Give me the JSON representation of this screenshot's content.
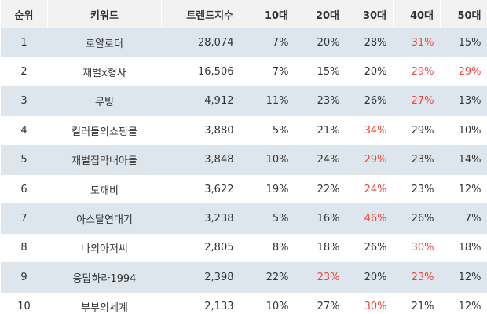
{
  "table": {
    "header": [
      "순위",
      "키워드",
      "트렌드지수",
      "10대",
      "20대",
      "30대",
      "40대",
      "50대"
    ],
    "rows": [
      [
        "1",
        "로얄로더",
        "28,074",
        "7%",
        "20%",
        "28%",
        "31%",
        "15%"
      ],
      [
        "2",
        "재벌x형사",
        "16,506",
        "7%",
        "15%",
        "20%",
        "29%",
        "29%"
      ],
      [
        "3",
        "무빙",
        "4,912",
        "11%",
        "23%",
        "26%",
        "27%",
        "13%"
      ],
      [
        "4",
        "킬러들의쇼핑몰",
        "3,880",
        "5%",
        "21%",
        "34%",
        "29%",
        "10%"
      ],
      [
        "5",
        "재벌집막내아들",
        "3,848",
        "10%",
        "24%",
        "29%",
        "23%",
        "14%"
      ],
      [
        "6",
        "도깨비",
        "3,622",
        "19%",
        "22%",
        "24%",
        "23%",
        "12%"
      ],
      [
        "7",
        "아스달연대기",
        "3,238",
        "5%",
        "16%",
        "46%",
        "26%",
        "7%"
      ],
      [
        "8",
        "나의아저씨",
        "2,805",
        "8%",
        "18%",
        "26%",
        "30%",
        "18%"
      ],
      [
        "9",
        "응답하라1994",
        "2,398",
        "22%",
        "23%",
        "20%",
        "23%",
        "12%"
      ],
      [
        "10",
        "부부의세계",
        "2,133",
        "10%",
        "27%",
        "30%",
        "21%",
        "12%"
      ]
    ],
    "highlight_color": "#e8483b",
    "highlighted": [
      [
        0,
        6
      ],
      [
        1,
        6
      ],
      [
        1,
        7
      ],
      [
        2,
        6
      ],
      [
        3,
        5
      ],
      [
        4,
        5
      ],
      [
        5,
        5
      ],
      [
        6,
        5
      ],
      [
        7,
        6
      ],
      [
        8,
        4
      ],
      [
        8,
        6
      ],
      [
        9,
        5
      ]
    ]
  }
}
